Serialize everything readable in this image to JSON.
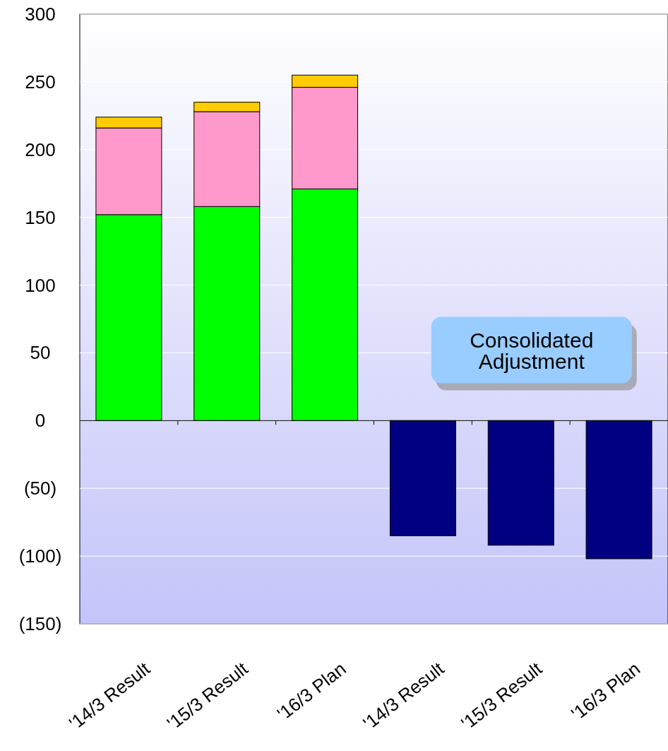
{
  "chart_data": {
    "type": "bar",
    "stacked": true,
    "categories": [
      "'14/3 Result",
      "'15/3 Result",
      "'16/3 Plan",
      "'14/3 Result",
      "'15/3 Result",
      "'16/3 Plan"
    ],
    "series": [
      {
        "color": "#00ff00",
        "values": [
          152,
          158,
          171,
          null,
          null,
          null
        ]
      },
      {
        "color": "#ff99cc",
        "values": [
          64,
          70,
          75,
          null,
          null,
          null
        ]
      },
      {
        "color": "#ffcc00",
        "values": [
          8,
          7,
          9,
          null,
          null,
          null
        ]
      },
      {
        "color": "#000080",
        "values": [
          null,
          null,
          null,
          -85,
          -92,
          -102
        ]
      }
    ],
    "ylim": [
      -150,
      300
    ],
    "yticks": [
      {
        "value": -150,
        "label": "(150)"
      },
      {
        "value": -100,
        "label": "(100)"
      },
      {
        "value": -50,
        "label": "(50)"
      },
      0,
      50,
      100,
      150,
      200,
      250,
      300
    ],
    "grid": "y",
    "annotations": [
      "Consolidated Adjustment"
    ]
  }
}
